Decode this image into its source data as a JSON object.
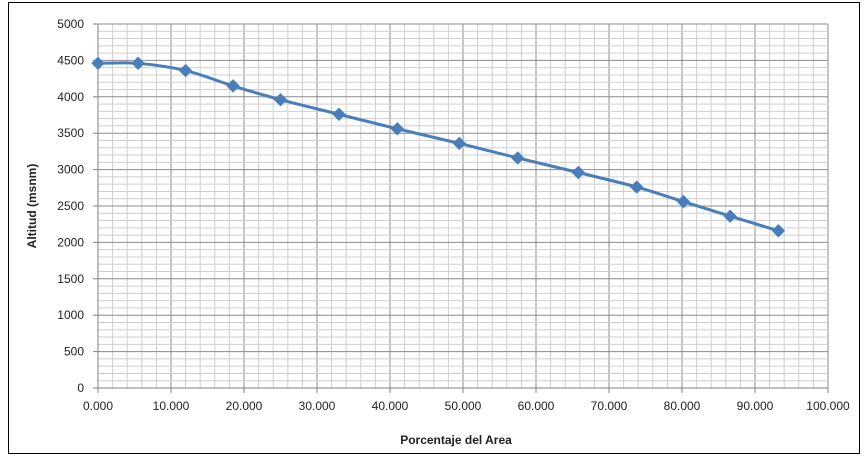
{
  "chart_data": {
    "type": "line",
    "title": "",
    "xlabel": "Porcentaje del Area",
    "ylabel": "Altitud (msnm)",
    "xlim": [
      0,
      100
    ],
    "ylim": [
      0,
      5000
    ],
    "x_ticks": [
      "0.000",
      "10.000",
      "20.000",
      "30.000",
      "40.000",
      "50.000",
      "60.000",
      "70.000",
      "80.000",
      "90.000",
      "100.000"
    ],
    "y_ticks": [
      "0",
      "500",
      "1000",
      "1500",
      "2000",
      "2500",
      "3000",
      "3500",
      "4000",
      "4500",
      "5000"
    ],
    "grid": true,
    "legend": "none",
    "line_color": "#4a7ebb",
    "series": [
      {
        "x": [
          0.0,
          5.5,
          12.0,
          18.5,
          25.0,
          33.0,
          41.0,
          49.5,
          57.5,
          65.8,
          73.8,
          80.2,
          86.6,
          93.2
        ],
        "y": [
          4460,
          4460,
          4360,
          4150,
          3960,
          3760,
          3560,
          3360,
          3160,
          2960,
          2760,
          2560,
          2360,
          2160
        ]
      }
    ]
  }
}
